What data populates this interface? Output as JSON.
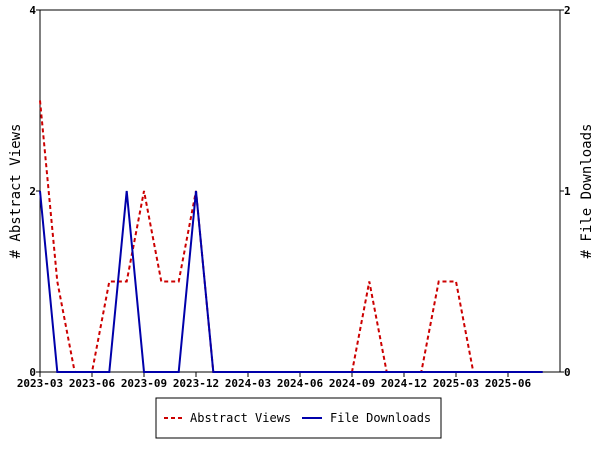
{
  "chart_data": {
    "type": "line",
    "title": "",
    "x_categories": [
      "2023-03",
      "2023-04",
      "2023-05",
      "2023-06",
      "2023-07",
      "2023-08",
      "2023-09",
      "2023-10",
      "2023-11",
      "2023-12",
      "2024-01",
      "2024-02",
      "2024-03",
      "2024-04",
      "2024-05",
      "2024-06",
      "2024-07",
      "2024-08",
      "2024-09",
      "2024-10",
      "2024-11",
      "2024-12",
      "2025-01",
      "2025-02",
      "2025-03",
      "2025-04",
      "2025-05",
      "2025-06",
      "2025-07",
      "2025-08"
    ],
    "x_tick_labels": [
      "2023-03",
      "2023-06",
      "2023-09",
      "2023-12",
      "2024-03",
      "2024-06",
      "2024-09",
      "2024-12",
      "2025-03",
      "2025-06"
    ],
    "left_axis": {
      "label": "# Abstract Views",
      "ylim": [
        0,
        4
      ],
      "ticks": [
        "0",
        "2",
        "4"
      ]
    },
    "right_axis": {
      "label": "# File Downloads",
      "ylim": [
        0,
        2
      ],
      "ticks": [
        "0",
        "1",
        "2"
      ]
    },
    "series": [
      {
        "name": "Abstract Views",
        "axis": "left",
        "color": "#cc0000",
        "dash": true,
        "values": [
          3,
          1,
          0,
          0,
          1,
          1,
          2,
          1,
          1,
          2,
          0,
          0,
          0,
          0,
          0,
          0,
          0,
          0,
          0,
          1,
          0,
          0,
          0,
          1,
          1,
          0,
          0,
          0,
          0,
          0
        ]
      },
      {
        "name": "File Downloads",
        "axis": "right",
        "color": "#0000aa",
        "dash": false,
        "values": [
          1,
          0,
          0,
          0,
          0,
          1,
          0,
          0,
          0,
          1,
          0,
          0,
          0,
          0,
          0,
          0,
          0,
          0,
          0,
          0,
          0,
          0,
          0,
          0,
          0,
          0,
          0,
          0,
          0,
          0
        ]
      }
    ],
    "legend": {
      "placement": "bottom-center"
    },
    "grid": false
  }
}
